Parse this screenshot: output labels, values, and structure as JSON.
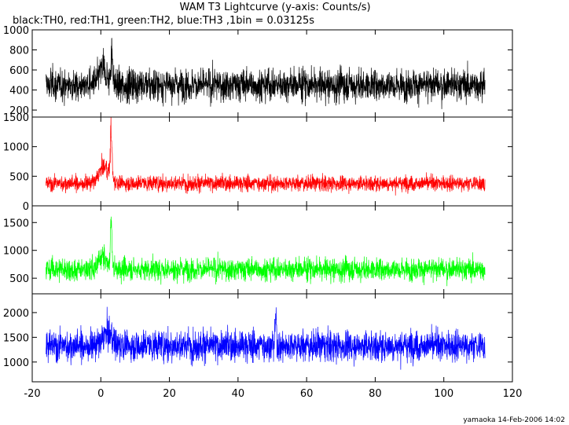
{
  "chart_data": {
    "type": "line",
    "title": "WAM T3 Lightcurve (y-axis: Counts/s)",
    "subtitle": "black:TH0, red:TH1, green:TH2, blue:TH3 ,1bin = 0.03125s",
    "footer": "yamaoka 14-Feb-2006 14:02",
    "x_range": [
      -20,
      120
    ],
    "x_ticks": [
      -20,
      0,
      20,
      40,
      60,
      80,
      100,
      120
    ],
    "x_tick_labels": [
      "-20",
      "0",
      "20",
      "40",
      "60",
      "80",
      "100",
      "120"
    ],
    "data_x_range": [
      -16,
      112
    ],
    "grid": false,
    "panels": [
      {
        "name": "TH0",
        "color": "#000000",
        "y_range": [
          130,
          1000
        ],
        "y_ticks": [
          200,
          400,
          600,
          800,
          1000
        ],
        "y_tick_labels": [
          "200",
          "400",
          "600",
          "800",
          "1000"
        ],
        "baseline": 450,
        "noise_amp": 135,
        "features": [
          {
            "x": 0.5,
            "height": 200,
            "width": 1.5
          },
          {
            "x": 3.2,
            "height": 400,
            "width": 0.4
          }
        ]
      },
      {
        "name": "TH1",
        "color": "#ff0000",
        "y_range": [
          0,
          1500
        ],
        "y_ticks": [
          0,
          500,
          1000,
          1500
        ],
        "y_tick_labels": [
          "0",
          "500",
          "1000",
          "1500"
        ],
        "baseline": 380,
        "noise_amp": 110,
        "features": [
          {
            "x": 1.0,
            "height": 350,
            "width": 2.0
          },
          {
            "x": 3.0,
            "height": 1000,
            "width": 0.35
          }
        ]
      },
      {
        "name": "TH2",
        "color": "#00ff00",
        "y_range": [
          220,
          1800
        ],
        "y_ticks": [
          500,
          1000,
          1500
        ],
        "y_tick_labels": [
          "500",
          "1000",
          "1500"
        ],
        "baseline": 660,
        "noise_amp": 170,
        "features": [
          {
            "x": 0.5,
            "height": 300,
            "width": 1.5
          },
          {
            "x": 3.0,
            "height": 1050,
            "width": 0.35
          }
        ]
      },
      {
        "name": "TH3",
        "color": "#0000ff",
        "y_range": [
          600,
          2380
        ],
        "y_ticks": [
          1000,
          1500,
          2000
        ],
        "y_tick_labels": [
          "1000",
          "1500",
          "2000"
        ],
        "baseline": 1330,
        "noise_amp": 260,
        "features": [
          {
            "x": 2.0,
            "height": 300,
            "width": 2.0
          },
          {
            "x": 51.0,
            "height": 700,
            "width": 0.3
          }
        ]
      }
    ]
  }
}
